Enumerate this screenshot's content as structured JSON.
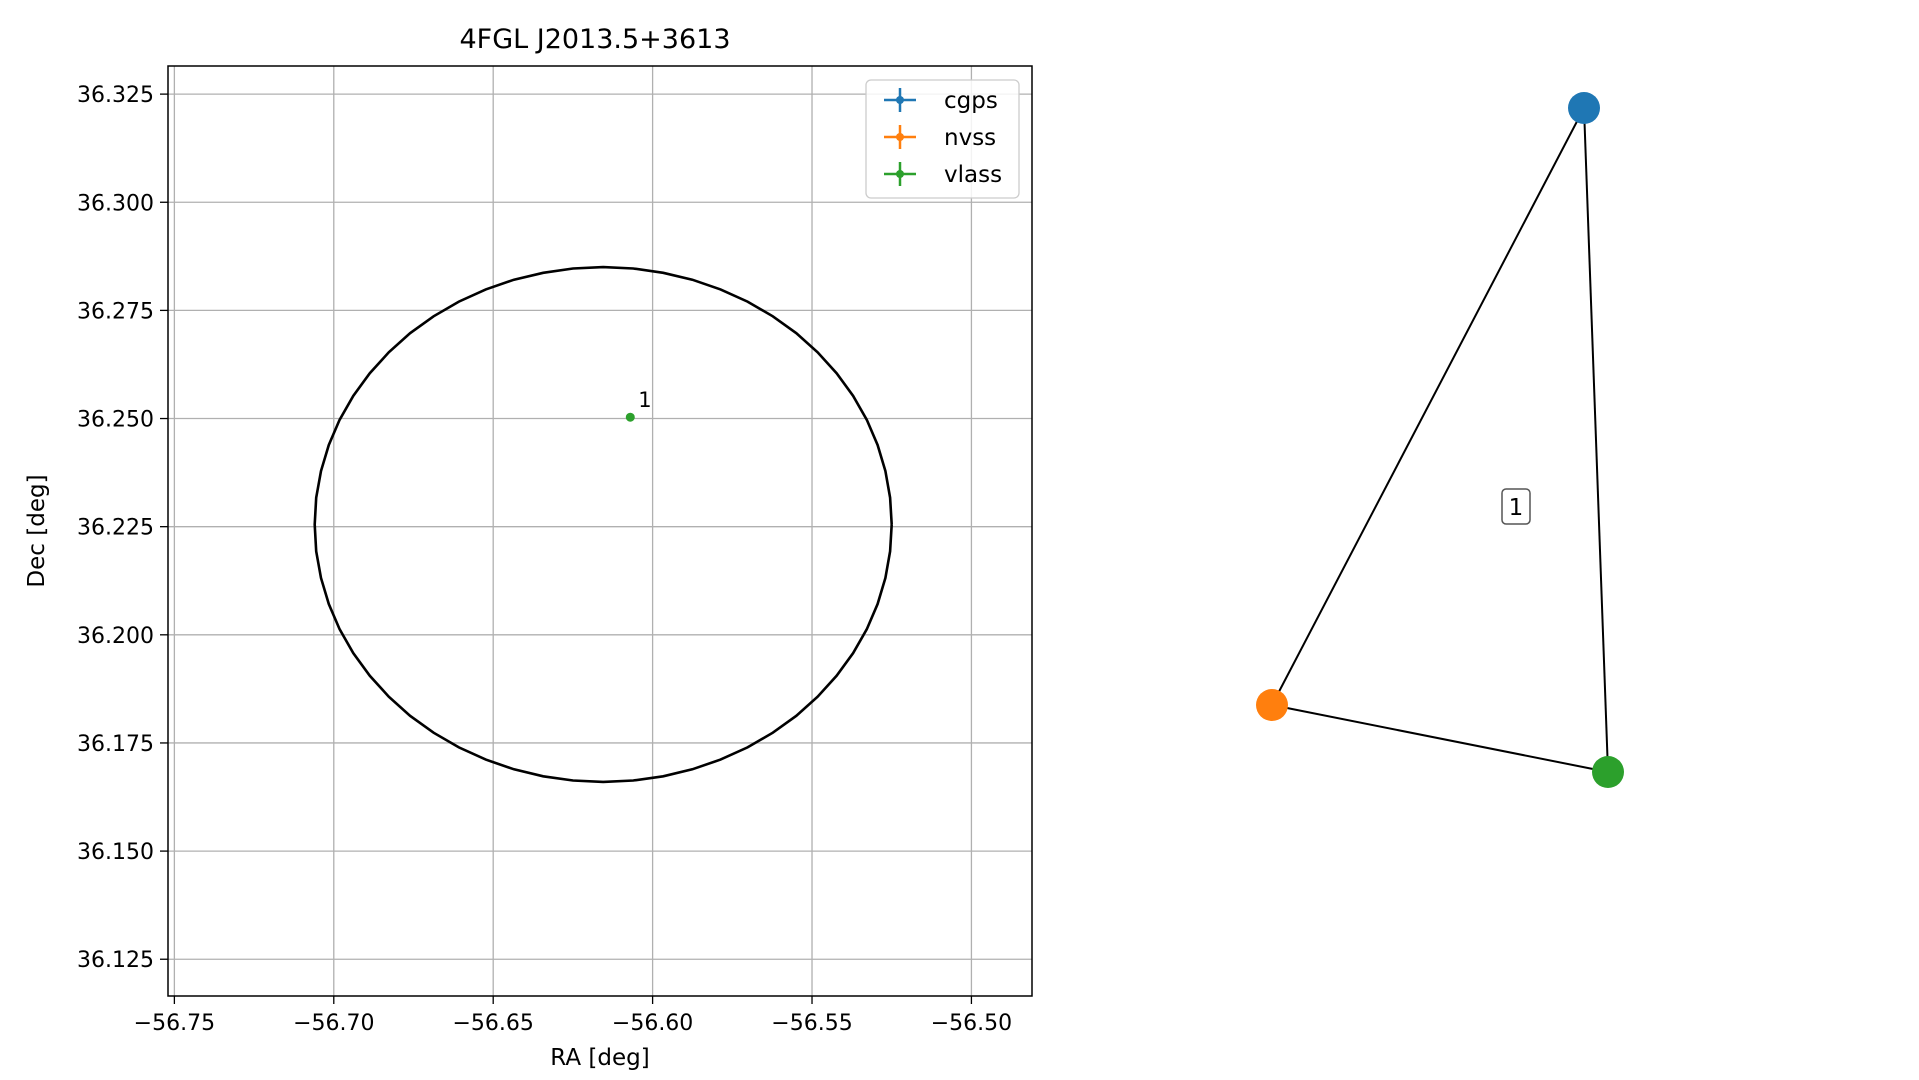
{
  "chart_data": [
    {
      "type": "scatter",
      "title": "4FGL J2013.5+3613",
      "xlabel": "RA [deg]",
      "ylabel": "Dec [deg]",
      "xlim": [
        -56.752,
        -56.481
      ],
      "ylim": [
        36.1165,
        36.3315
      ],
      "xticks": [
        -56.75,
        -56.7,
        -56.65,
        -56.6,
        -56.55,
        -56.5
      ],
      "xtick_labels": [
        "−56.75",
        "−56.70",
        "−56.65",
        "−56.60",
        "−56.55",
        "−56.50"
      ],
      "yticks": [
        36.125,
        36.15,
        36.175,
        36.2,
        36.225,
        36.25,
        36.275,
        36.3,
        36.325
      ],
      "ytick_labels": [
        "36.125",
        "36.150",
        "36.175",
        "36.200",
        "36.225",
        "36.250",
        "36.275",
        "36.300",
        "36.325"
      ],
      "grid": true,
      "legend_position": "top-right",
      "series": [
        {
          "name": "cgps",
          "color": "#1f77b4",
          "points": []
        },
        {
          "name": "nvss",
          "color": "#ff7f0e",
          "points": []
        },
        {
          "name": "vlass",
          "color": "#2ca02c",
          "points": [
            {
              "x": -56.607,
              "y": 36.2503,
              "label": "1"
            }
          ]
        }
      ],
      "ellipse": {
        "center_x": -56.6155,
        "center_y": 36.2255,
        "radius_x": 0.0905,
        "radius_y": 0.0595,
        "color": "#000000"
      }
    },
    {
      "type": "graph",
      "nodes": [
        {
          "id": "cgps",
          "color": "#1f77b4"
        },
        {
          "id": "nvss",
          "color": "#ff7f0e"
        },
        {
          "id": "vlass",
          "color": "#2ca02c"
        }
      ],
      "edges": [
        [
          "cgps",
          "nvss"
        ],
        [
          "cgps",
          "vlass"
        ],
        [
          "nvss",
          "vlass"
        ]
      ],
      "group_label": "1"
    }
  ]
}
